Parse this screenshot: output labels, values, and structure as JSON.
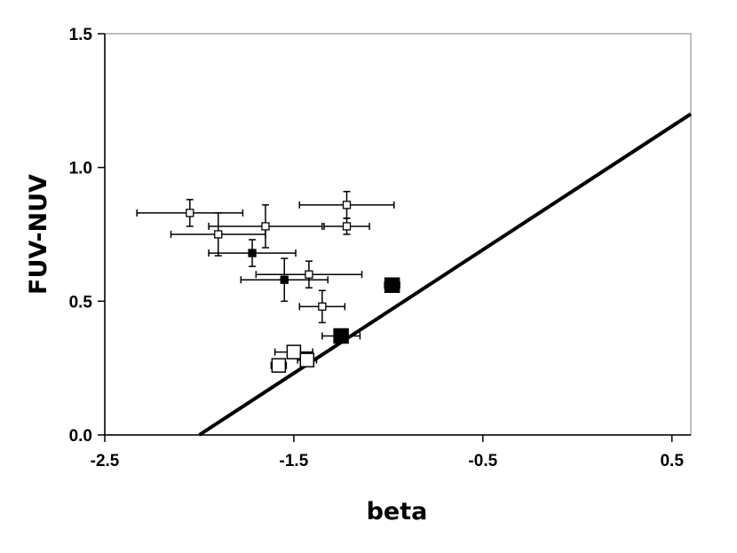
{
  "chart_data": {
    "type": "scatter",
    "xlabel": "beta",
    "ylabel": "FUV-NUV",
    "xlim": [
      -2.5,
      0.6
    ],
    "ylim": [
      0.0,
      1.5
    ],
    "x_ticks": [
      -2.5,
      -1.5,
      -0.5,
      0.5
    ],
    "y_ticks": [
      0.0,
      0.5,
      1.0,
      1.5
    ],
    "x_tick_labels": [
      "-2.5",
      "-1.5",
      "-0.5",
      "0.5"
    ],
    "y_tick_labels": [
      "0.0",
      "0.5",
      "1.0",
      "1.5"
    ],
    "grid": false,
    "legend": "none",
    "series": [
      {
        "marker": "small-open-square",
        "points": [
          {
            "x": -2.05,
            "y": 0.83,
            "xerr": 0.28,
            "yerr": 0.05
          },
          {
            "x": -1.9,
            "y": 0.75,
            "xerr": 0.25,
            "yerr": 0.08
          },
          {
            "x": -1.65,
            "y": 0.78,
            "xerr": 0.3,
            "yerr": 0.08
          },
          {
            "x": -1.22,
            "y": 0.86,
            "xerr": 0.25,
            "yerr": 0.05
          },
          {
            "x": -1.22,
            "y": 0.78,
            "xerr": 0.12,
            "yerr": 0.03
          },
          {
            "x": -1.42,
            "y": 0.6,
            "xerr": 0.28,
            "yerr": 0.05
          },
          {
            "x": -1.35,
            "y": 0.48,
            "xerr": 0.12,
            "yerr": 0.06
          }
        ]
      },
      {
        "marker": "small-filled-square",
        "points": [
          {
            "x": -1.72,
            "y": 0.68,
            "xerr": 0.23,
            "yerr": 0.05
          },
          {
            "x": -1.55,
            "y": 0.58,
            "xerr": 0.23,
            "yerr": 0.08
          }
        ]
      },
      {
        "marker": "large-filled-square",
        "points": [
          {
            "x": -0.98,
            "y": 0.56,
            "xerr": 0.04,
            "yerr": 0.02
          },
          {
            "x": -1.25,
            "y": 0.37,
            "xerr": 0.1,
            "yerr": 0.02
          }
        ]
      },
      {
        "marker": "large-open-square",
        "points": [
          {
            "x": -1.5,
            "y": 0.31,
            "xerr": 0.1,
            "yerr": 0.02
          },
          {
            "x": -1.43,
            "y": 0.28,
            "xerr": 0.05,
            "yerr": 0.02
          },
          {
            "x": -1.58,
            "y": 0.26,
            "xerr": 0.04,
            "yerr": 0.02
          }
        ]
      }
    ],
    "line": {
      "x": [
        -2.0,
        0.6
      ],
      "y": [
        0.0,
        1.2
      ]
    }
  }
}
